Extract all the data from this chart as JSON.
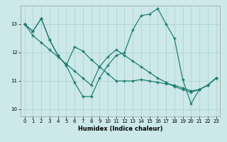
{
  "xlabel": "Humidex (Indice chaleur)",
  "xlim": [
    -0.5,
    23.5
  ],
  "ylim": [
    9.75,
    13.65
  ],
  "yticks": [
    10,
    11,
    12,
    13
  ],
  "xticks": [
    0,
    1,
    2,
    3,
    4,
    5,
    6,
    7,
    8,
    9,
    10,
    11,
    12,
    13,
    14,
    15,
    16,
    17,
    18,
    19,
    20,
    21,
    22,
    23
  ],
  "bg_color": "#cce8e8",
  "grid_color": "#aad0d0",
  "line_color": "#1a7a6e",
  "lines": [
    [
      13.0,
      12.75,
      13.2,
      12.45,
      11.9,
      11.55,
      10.95,
      10.45,
      10.45,
      11.1,
      11.55,
      11.9,
      12.0,
      12.8,
      13.3,
      13.35,
      13.55,
      13.0,
      12.5,
      11.05,
      10.2,
      10.7,
      10.85,
      11.1
    ],
    [
      13.0,
      12.75,
      13.2,
      12.45,
      11.9,
      11.55,
      12.2,
      12.05,
      11.75,
      11.5,
      11.25,
      11.0,
      11.0,
      11.0,
      11.05,
      11.0,
      10.95,
      10.9,
      10.85,
      10.75,
      10.65,
      10.7,
      10.85,
      11.1
    ],
    [
      13.0,
      12.6,
      12.35,
      12.1,
      11.85,
      11.6,
      11.35,
      11.1,
      10.85,
      11.5,
      11.85,
      12.1,
      11.9,
      11.7,
      11.5,
      11.3,
      11.1,
      10.95,
      10.8,
      10.7,
      10.6,
      10.7,
      10.85,
      11.1
    ]
  ]
}
